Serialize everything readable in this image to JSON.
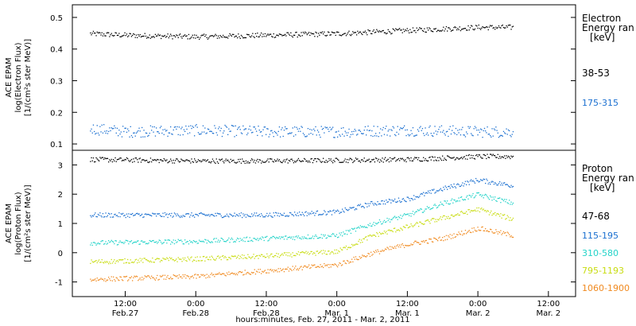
{
  "chart_data": [
    {
      "type": "scatter",
      "panel": "electron",
      "ylabel": [
        "ACE EPAM",
        "log(Electron Flux)",
        "[1/(cm²s ster MeV)]"
      ],
      "ylim": [
        0.08,
        0.54
      ],
      "yticks": [
        0.1,
        0.2,
        0.3,
        0.4,
        0.5
      ],
      "ytick_labels": [
        "0.1",
        "0.2",
        "0.3",
        "0.4",
        "0.5"
      ],
      "legend_title": [
        "Electron",
        "Energy ran",
        "[keV]"
      ],
      "series": [
        {
          "name": "38-53",
          "color": "#000000",
          "x": [
            "2011-02-27T06:00",
            "2011-02-27T12:00",
            "2011-02-28T00:00",
            "2011-02-28T12:00",
            "2011-03-01T00:00",
            "2011-03-01T12:00",
            "2011-03-02T00:00",
            "2011-03-02T06:00"
          ],
          "y": [
            0.45,
            0.445,
            0.44,
            0.445,
            0.45,
            0.46,
            0.47,
            0.47
          ]
        },
        {
          "name": "175-315",
          "color": "#1a6fd0",
          "x": [
            "2011-02-27T06:00",
            "2011-02-27T12:00",
            "2011-02-28T00:00",
            "2011-02-28T12:00",
            "2011-03-01T00:00",
            "2011-03-01T12:00",
            "2011-03-02T00:00",
            "2011-03-02T06:00"
          ],
          "y": [
            0.15,
            0.14,
            0.145,
            0.14,
            0.14,
            0.145,
            0.14,
            0.14
          ]
        }
      ]
    },
    {
      "type": "scatter",
      "panel": "proton",
      "ylabel": [
        "ACE EPAM",
        "log(Proton Flux)",
        "[1/(cm²s ster MeV)]"
      ],
      "ylim": [
        -1.5,
        3.5
      ],
      "yticks": [
        -1,
        0,
        1,
        2,
        3
      ],
      "ytick_labels": [
        "-1",
        "0",
        "1",
        "2",
        "3"
      ],
      "legend_title": [
        "Proton",
        "Energy ran",
        "[keV]"
      ],
      "series": [
        {
          "name": "47-68",
          "color": "#000000",
          "x": [
            "2011-02-27T06:00",
            "2011-02-28T00:00",
            "2011-02-28T12:00",
            "2011-03-01T00:00",
            "2011-03-01T12:00",
            "2011-03-01T18:00",
            "2011-03-02T00:00",
            "2011-03-02T06:00"
          ],
          "y": [
            3.2,
            3.15,
            3.15,
            3.17,
            3.2,
            3.25,
            3.3,
            3.3
          ]
        },
        {
          "name": "115-195",
          "color": "#1a6fd0",
          "x": [
            "2011-02-27T06:00",
            "2011-02-28T00:00",
            "2011-02-28T12:00",
            "2011-03-01T00:00",
            "2011-03-01T06:00",
            "2011-03-01T12:00",
            "2011-03-01T18:00",
            "2011-03-02T00:00",
            "2011-03-02T06:00"
          ],
          "y": [
            1.3,
            1.3,
            1.3,
            1.4,
            1.7,
            1.85,
            2.2,
            2.5,
            2.3
          ]
        },
        {
          "name": "310-580",
          "color": "#22d3c8",
          "x": [
            "2011-02-27T06:00",
            "2011-02-28T00:00",
            "2011-02-28T12:00",
            "2011-03-01T00:00",
            "2011-03-01T06:00",
            "2011-03-01T12:00",
            "2011-03-01T18:00",
            "2011-03-02T00:00",
            "2011-03-02T06:00"
          ],
          "y": [
            0.35,
            0.4,
            0.5,
            0.6,
            1.0,
            1.3,
            1.7,
            2.0,
            1.7
          ]
        },
        {
          "name": "795-1193",
          "color": "#c8dc10",
          "x": [
            "2011-02-27T06:00",
            "2011-02-28T00:00",
            "2011-02-28T12:00",
            "2011-03-01T00:00",
            "2011-03-01T06:00",
            "2011-03-01T12:00",
            "2011-03-01T18:00",
            "2011-03-02T00:00",
            "2011-03-02T06:00"
          ],
          "y": [
            -0.3,
            -0.2,
            -0.1,
            0.05,
            0.6,
            0.9,
            1.2,
            1.5,
            1.15
          ]
        },
        {
          "name": "1060-1900",
          "color": "#f08a20",
          "x": [
            "2011-02-27T06:00",
            "2011-02-28T00:00",
            "2011-02-28T12:00",
            "2011-03-01T00:00",
            "2011-03-01T06:00",
            "2011-03-01T12:00",
            "2011-03-01T18:00",
            "2011-03-02T00:00",
            "2011-03-02T06:00"
          ],
          "y": [
            -0.9,
            -0.8,
            -0.6,
            -0.4,
            0.0,
            0.3,
            0.5,
            0.85,
            0.6
          ]
        }
      ]
    }
  ],
  "x_axis": {
    "range": [
      "2011-02-27T03:00",
      "2011-03-02T15:00"
    ],
    "ticks": [
      {
        "t": "2011-02-27T12:00",
        "time": "12:00",
        "date": "Feb.27"
      },
      {
        "t": "2011-02-28T00:00",
        "time": "0:00",
        "date": "Feb.28"
      },
      {
        "t": "2011-02-28T12:00",
        "time": "12:00",
        "date": "Feb.28"
      },
      {
        "t": "2011-03-01T00:00",
        "time": "0:00",
        "date": "Mar. 1"
      },
      {
        "t": "2011-03-01T12:00",
        "time": "12:00",
        "date": "Mar. 1"
      },
      {
        "t": "2011-03-02T00:00",
        "time": "0:00",
        "date": "Mar. 2"
      },
      {
        "t": "2011-03-02T12:00",
        "time": "12:00",
        "date": "Mar. 2"
      }
    ],
    "label": "hours:minutes, Feb. 27, 2011 - Mar.  2, 2011"
  }
}
